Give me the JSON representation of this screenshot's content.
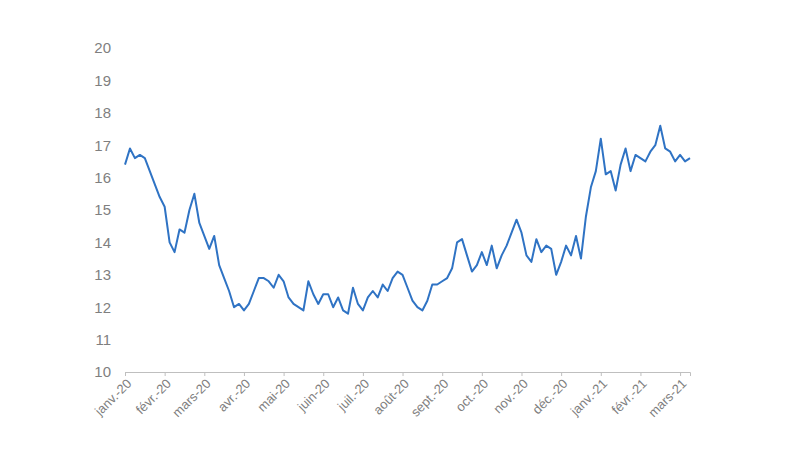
{
  "chart_data": {
    "type": "line",
    "color": "#2f73c4",
    "grid": false,
    "categories": [
      "janv.-20",
      null,
      null,
      null,
      null,
      null,
      null,
      null,
      "févr.-20",
      null,
      null,
      null,
      null,
      null,
      null,
      null,
      "mars-20",
      null,
      null,
      null,
      null,
      null,
      null,
      null,
      "avr.-20",
      null,
      null,
      null,
      null,
      null,
      null,
      null,
      "mai-20",
      null,
      null,
      null,
      null,
      null,
      null,
      null,
      "juin-20",
      null,
      null,
      null,
      null,
      null,
      null,
      null,
      "juil.-20",
      null,
      null,
      null,
      null,
      null,
      null,
      null,
      "août-20",
      null,
      null,
      null,
      null,
      null,
      null,
      null,
      "sept.-20",
      null,
      null,
      null,
      null,
      null,
      null,
      null,
      "oct.-20",
      null,
      null,
      null,
      null,
      null,
      null,
      null,
      "nov.-20",
      null,
      null,
      null,
      null,
      null,
      null,
      null,
      "déc.-20",
      null,
      null,
      null,
      null,
      null,
      null,
      null,
      "janv.-21",
      null,
      null,
      null,
      null,
      null,
      null,
      null,
      "févr.-21",
      null,
      null,
      null,
      null,
      null,
      null,
      null,
      "mars-21",
      null,
      null
    ],
    "values": [
      16.4,
      16.9,
      16.6,
      16.7,
      16.6,
      16.2,
      15.8,
      15.4,
      15.1,
      14.0,
      13.7,
      14.4,
      14.3,
      15.0,
      15.5,
      14.6,
      14.2,
      13.8,
      14.2,
      13.3,
      12.9,
      12.5,
      12.0,
      12.1,
      11.9,
      12.1,
      12.5,
      12.9,
      12.9,
      12.8,
      12.6,
      13.0,
      12.8,
      12.3,
      12.1,
      12.0,
      11.9,
      12.8,
      12.4,
      12.1,
      12.4,
      12.4,
      12.0,
      12.3,
      11.9,
      11.8,
      12.6,
      12.1,
      11.9,
      12.3,
      12.5,
      12.3,
      12.7,
      12.5,
      12.9,
      13.1,
      13.0,
      12.6,
      12.2,
      12.0,
      11.9,
      12.2,
      12.7,
      12.7,
      12.8,
      12.9,
      13.2,
      14.0,
      14.1,
      13.6,
      13.1,
      13.3,
      13.7,
      13.3,
      13.9,
      13.2,
      13.6,
      13.9,
      14.3,
      14.7,
      14.3,
      13.6,
      13.4,
      14.1,
      13.7,
      13.9,
      13.8,
      13.0,
      13.4,
      13.9,
      13.6,
      14.2,
      13.5,
      14.8,
      15.7,
      16.2,
      17.2,
      16.1,
      16.2,
      15.6,
      16.4,
      16.9,
      16.2,
      16.7,
      16.6,
      16.5,
      16.8,
      17.0,
      17.6,
      16.9,
      16.8,
      16.5,
      16.7,
      16.5,
      16.6
    ],
    "ylim": [
      10,
      20
    ],
    "yticks": [
      10,
      11,
      12,
      13,
      14,
      15,
      16,
      17,
      18,
      19,
      20
    ]
  }
}
